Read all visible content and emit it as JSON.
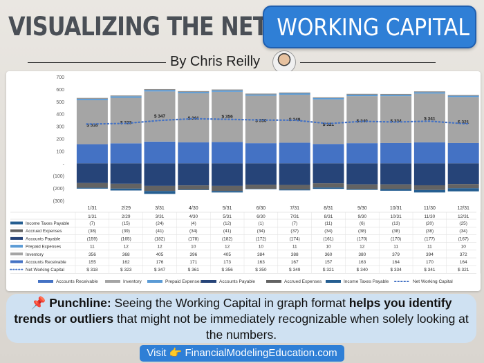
{
  "header": {
    "title_left": "VISUALIZING THE NET",
    "title_right": "WORKING CAPITAL",
    "byline": "By Chris Reilly"
  },
  "colors": {
    "accounts_receivable": "#4472c4",
    "inventory": "#a5a5a5",
    "prepaid_expenses": "#5b9bd5",
    "accounts_payable": "#264478",
    "accrued_expenses": "#636363",
    "income_taxes_payable": "#255e91",
    "net_working_capital": "#4472c4",
    "brand_blue": "#2f7fd6"
  },
  "chart_data": {
    "type": "bar",
    "stacked": true,
    "categories": [
      "1/31",
      "2/29",
      "3/31",
      "4/30",
      "5/31",
      "6/30",
      "7/31",
      "8/31",
      "9/30",
      "10/31",
      "11/30",
      "12/31"
    ],
    "yticks": [
      "700",
      "600",
      "500",
      "400",
      "300",
      "200",
      "100",
      "-",
      "(100)",
      "(200)",
      "(300)"
    ],
    "ylim": [
      -300,
      700
    ],
    "series": [
      {
        "name": "Accounts Receivable",
        "key": "accounts_receivable",
        "values": [
          155,
          162,
          176,
          171,
          173,
          163,
          167,
          157,
          163,
          164,
          170,
          164
        ],
        "labels": [
          "155",
          "162",
          "176",
          "171",
          "173",
          "163",
          "167",
          "157",
          "163",
          "164",
          "170",
          "164"
        ]
      },
      {
        "name": "Inventory",
        "key": "inventory",
        "values": [
          356,
          368,
          405,
          396,
          405,
          384,
          388,
          360,
          380,
          379,
          394,
          372
        ],
        "labels": [
          "356",
          "368",
          "405",
          "396",
          "405",
          "384",
          "388",
          "360",
          "380",
          "379",
          "394",
          "372"
        ]
      },
      {
        "name": "Prepaid Expenses",
        "key": "prepaid_expenses",
        "values": [
          11,
          12,
          12,
          10,
          12,
          10,
          11,
          10,
          12,
          11,
          11,
          10
        ],
        "labels": [
          "11",
          "12",
          "12",
          "10",
          "12",
          "10",
          "11",
          "10",
          "12",
          "11",
          "11",
          "10"
        ]
      },
      {
        "name": "Accounts Payable",
        "key": "accounts_payable",
        "values": [
          -159,
          -165,
          -182,
          -178,
          -182,
          -172,
          -174,
          -161,
          -170,
          -170,
          -177,
          -167
        ],
        "labels": [
          "(159)",
          "(165)",
          "(182)",
          "(178)",
          "(182)",
          "(172)",
          "(174)",
          "(161)",
          "(170)",
          "(170)",
          "(177)",
          "(167)"
        ]
      },
      {
        "name": "Accrued Expenses",
        "key": "accrued_expenses",
        "values": [
          -38,
          -39,
          -41,
          -34,
          -41,
          -34,
          -37,
          -34,
          -38,
          -38,
          -38,
          -34
        ],
        "labels": [
          "(38)",
          "(39)",
          "(41)",
          "(34)",
          "(41)",
          "(34)",
          "(37)",
          "(34)",
          "(38)",
          "(38)",
          "(38)",
          "(34)"
        ]
      },
      {
        "name": "Income Taxes Payable",
        "key": "income_taxes_payable",
        "values": [
          -7,
          -15,
          -24,
          -4,
          -12,
          -1,
          -7,
          -11,
          -6,
          -13,
          -20,
          -25
        ],
        "labels": [
          "(7)",
          "(15)",
          "(24)",
          "(4)",
          "(12)",
          "(1)",
          "(7)",
          "(11)",
          "(6)",
          "(13)",
          "(20)",
          "(25)"
        ]
      }
    ],
    "net_working_capital": {
      "name": "Net Working Capital",
      "values": [
        318,
        323,
        347,
        361,
        356,
        350,
        349,
        321,
        340,
        334,
        341,
        321
      ],
      "labels": [
        "$ 318",
        "$ 323",
        "$ 347",
        "$ 361",
        "$ 356",
        "$ 350",
        "$ 349",
        "$ 321",
        "$ 340",
        "$ 334",
        "$ 341",
        "$ 321"
      ]
    },
    "table_rows": [
      "Income Taxes Payable",
      "Accrued Expenses",
      "Accounts Payable",
      "Prepaid Expenses",
      "Inventory",
      "Accounts Receivable",
      "Net Working Capital"
    ],
    "legend": [
      "Accounts Receivable",
      "Inventory",
      "Prepaid Expenses",
      "Accounts Payable",
      "Accrued Expenses",
      "Income Taxes Payable",
      "Net Working Capital"
    ],
    "legend_position": "bottom",
    "grid": false
  },
  "punchline": {
    "icon": "pushpin-icon",
    "lead": "Punchline:",
    "t1": " Seeing the Working Capital in graph format ",
    "bold": "helps you identify trends or outliers",
    "t2": " that might not be immediately recognizable when solely looking at the numbers."
  },
  "footer": {
    "visit_label": "Visit",
    "icon": "pointing-hand-icon",
    "url_text": "FinancialModelingEducation.com"
  }
}
